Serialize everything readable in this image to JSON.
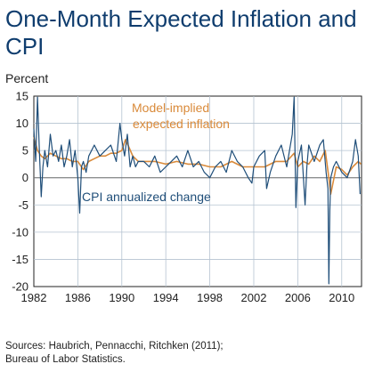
{
  "title": "One-Month Expected Inflation and CPI",
  "unit_label": "Percent",
  "sources": [
    "Sources: Haubrich, Pennacchi, Ritchken (2011);",
    "Bureau of Labor Statistics."
  ],
  "colors": {
    "title": "#0f3d6e",
    "cpi": "#1f4e79",
    "model": "#d98a3a",
    "axis": "#222222",
    "grid": "#b5c3d1"
  },
  "chart_data": {
    "type": "line",
    "title": "One-Month Expected Inflation and CPI",
    "ylabel": "Percent",
    "xlim": [
      1982,
      2011.8
    ],
    "ylim": [
      -20,
      15
    ],
    "xticks": [
      1982,
      1986,
      1990,
      1994,
      1998,
      2002,
      2006,
      2010
    ],
    "yticks": [
      15,
      10,
      5,
      0,
      -5,
      -10,
      -15,
      -20
    ],
    "grid": true,
    "annotations": [
      {
        "text": "Model-implied",
        "series": "model"
      },
      {
        "text": "expected inflation",
        "series": "model"
      },
      {
        "text": "CPI annualized change",
        "series": "cpi"
      }
    ],
    "series": [
      {
        "name": "CPI annualized change",
        "color": "#1f4e79",
        "x": [
          1982.0,
          1982.17,
          1982.33,
          1982.5,
          1982.67,
          1982.83,
          1983.0,
          1983.25,
          1983.5,
          1983.75,
          1984.0,
          1984.25,
          1984.5,
          1984.75,
          1985.0,
          1985.25,
          1985.5,
          1985.75,
          1986.0,
          1986.17,
          1986.33,
          1986.5,
          1986.75,
          1987.0,
          1987.5,
          1988.0,
          1988.5,
          1989.0,
          1989.5,
          1989.83,
          1990.0,
          1990.25,
          1990.5,
          1990.75,
          1991.0,
          1991.25,
          1991.5,
          1992.0,
          1992.5,
          1993.0,
          1993.5,
          1994.0,
          1994.5,
          1995.0,
          1995.5,
          1996.0,
          1996.5,
          1997.0,
          1997.5,
          1998.0,
          1998.5,
          1999.0,
          1999.5,
          2000.0,
          2000.5,
          2001.0,
          2001.5,
          2001.83,
          2002.0,
          2002.5,
          2003.0,
          2003.17,
          2003.5,
          2004.0,
          2004.5,
          2005.0,
          2005.5,
          2005.67,
          2005.83,
          2006.0,
          2006.33,
          2006.67,
          2006.83,
          2007.0,
          2007.5,
          2008.0,
          2008.33,
          2008.58,
          2008.75,
          2008.83,
          2008.92,
          2009.0,
          2009.25,
          2009.5,
          2010.0,
          2010.5,
          2011.0,
          2011.25,
          2011.5,
          2011.67
        ],
        "values": [
          9,
          3,
          14.8,
          5,
          -3.5,
          2,
          5,
          2,
          8,
          4,
          5,
          3,
          6,
          2,
          4,
          7,
          2,
          5,
          0,
          -6.5,
          2,
          3,
          1,
          4,
          6,
          4,
          5,
          6,
          3,
          10,
          7,
          4,
          8,
          2,
          4,
          2,
          3,
          3,
          2,
          4,
          1,
          2,
          3,
          4,
          2,
          5,
          2,
          3,
          1,
          0,
          2,
          3,
          1,
          5,
          3,
          2,
          0,
          -1,
          2,
          4,
          5,
          -2,
          1,
          4,
          6,
          2,
          8,
          14.8,
          -5.5,
          3,
          6,
          -5,
          2,
          6,
          3,
          6,
          7,
          1,
          -2,
          -19.5,
          -6,
          0,
          2,
          3,
          1,
          0,
          3,
          7,
          4,
          -3
        ]
      },
      {
        "name": "Model-implied expected inflation",
        "color": "#d98a3a",
        "x": [
          1982.0,
          1982.33,
          1982.67,
          1983.0,
          1983.5,
          1984.0,
          1984.5,
          1985.0,
          1985.5,
          1986.0,
          1986.5,
          1987.0,
          1987.5,
          1988.0,
          1988.5,
          1989.0,
          1989.5,
          1990.0,
          1990.33,
          1990.67,
          1991.0,
          1991.5,
          1992.0,
          1993.0,
          1994.0,
          1995.0,
          1996.0,
          1997.0,
          1998.0,
          1999.0,
          2000.0,
          2001.0,
          2002.0,
          2003.0,
          2004.0,
          2005.0,
          2005.67,
          2006.0,
          2006.5,
          2007.0,
          2007.5,
          2008.0,
          2008.5,
          2008.83,
          2009.0,
          2009.5,
          2010.0,
          2010.5,
          2011.0,
          2011.5,
          2011.75
        ],
        "values": [
          7.5,
          5,
          4,
          3.5,
          4.5,
          4,
          3.5,
          3.5,
          3,
          3,
          1.5,
          3,
          3.5,
          4,
          4,
          4.5,
          4.5,
          5,
          7,
          5.5,
          4,
          3,
          3,
          3,
          2.5,
          3,
          2.5,
          2.5,
          2,
          2,
          3,
          2,
          2,
          2,
          3,
          3,
          4.5,
          2,
          3,
          2.5,
          4,
          3,
          5,
          0,
          -3,
          2,
          1.5,
          0.5,
          2,
          3,
          2.5
        ]
      }
    ]
  }
}
